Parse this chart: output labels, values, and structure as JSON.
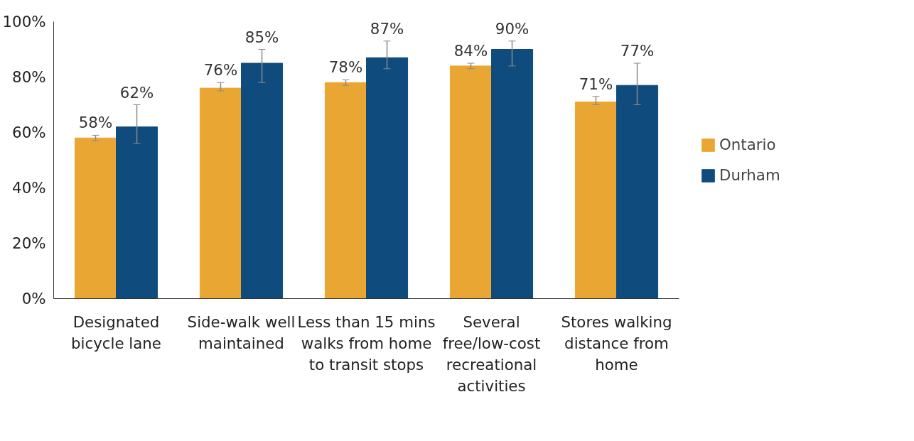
{
  "chart_data": {
    "type": "bar",
    "categories": [
      "Designated bicycle lane",
      "Side-walk well maintained",
      "Less than 15 mins walks from home to transit stops",
      "Several free/low-cost recreational activities",
      "Stores walking distance from home"
    ],
    "series": [
      {
        "name": "Ontario",
        "color": "#eaa633",
        "values": [
          58,
          76,
          78,
          84,
          71
        ],
        "errors": [
          [
            57,
            59
          ],
          [
            75,
            78
          ],
          [
            77,
            79
          ],
          [
            83,
            85
          ],
          [
            70,
            73
          ]
        ],
        "value_labels": [
          "58%",
          "76%",
          "78%",
          "84%",
          "71%"
        ]
      },
      {
        "name": "Durham",
        "color": "#0f4c7d",
        "values": [
          62,
          85,
          87,
          90,
          77
        ],
        "errors": [
          [
            56,
            70
          ],
          [
            78,
            90
          ],
          [
            83,
            93
          ],
          [
            84,
            93
          ],
          [
            70,
            85
          ]
        ],
        "value_labels": [
          "62%",
          "85%",
          "87%",
          "90%",
          "77%"
        ]
      }
    ],
    "ylim": [
      0,
      100
    ],
    "yticks": [
      {
        "value": 0,
        "label": "0%"
      },
      {
        "value": 20,
        "label": "20%"
      },
      {
        "value": 40,
        "label": "40%"
      },
      {
        "value": 60,
        "label": "60%"
      },
      {
        "value": 80,
        "label": "80%"
      },
      {
        "value": 100,
        "label": "100%"
      }
    ],
    "legend": "right",
    "grid": false
  }
}
